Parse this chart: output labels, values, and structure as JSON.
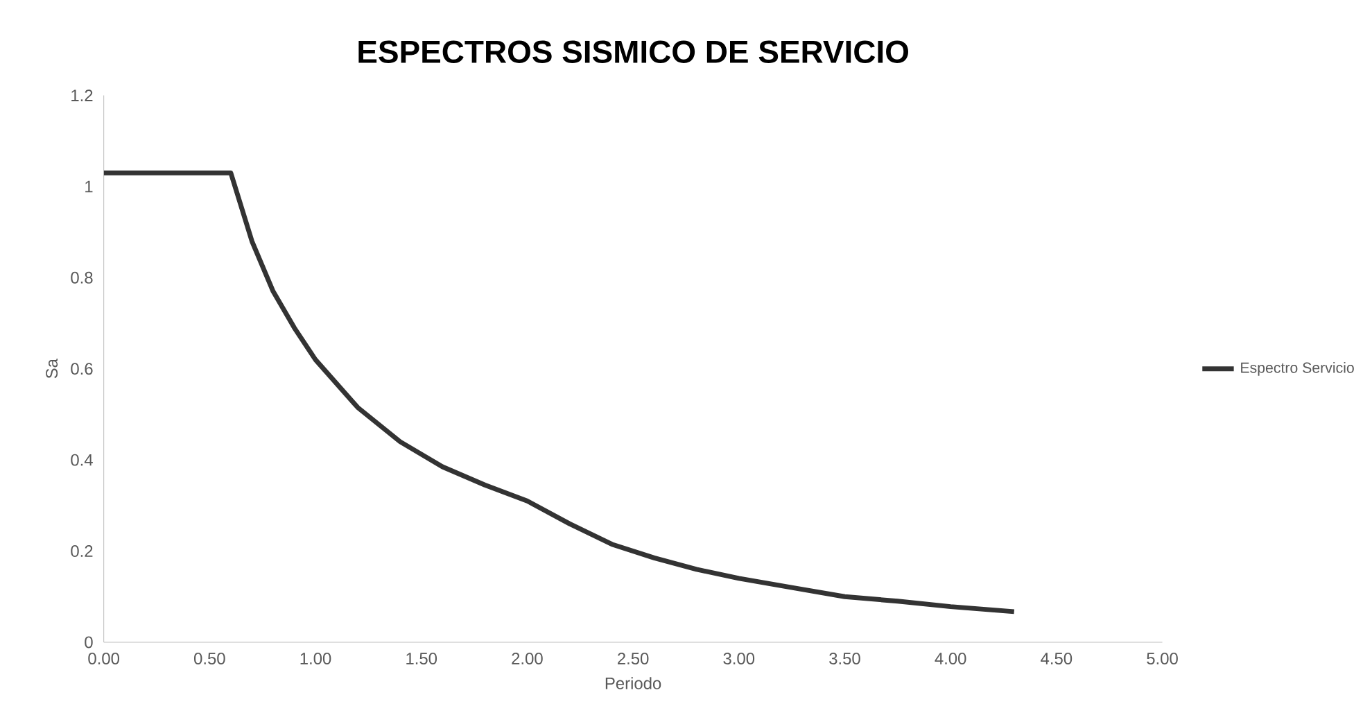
{
  "chart_data": {
    "type": "line",
    "title": "ESPECTROS SISMICO DE SERVICIO",
    "xlabel": "Periodo",
    "ylabel": "Sa",
    "x": [
      0,
      0.6,
      0.7,
      0.8,
      0.9,
      1.0,
      1.2,
      1.4,
      1.6,
      1.8,
      2.0,
      2.2,
      2.4,
      2.6,
      2.8,
      3.0,
      3.25,
      3.5,
      3.75,
      4.0,
      4.3
    ],
    "series": [
      {
        "name": "Espectro Servicio",
        "color": "#333333",
        "values": [
          1.03,
          1.03,
          0.88,
          0.77,
          0.69,
          0.62,
          0.515,
          0.44,
          0.385,
          0.345,
          0.31,
          0.26,
          0.215,
          0.185,
          0.16,
          0.14,
          0.12,
          0.1,
          0.09,
          0.078,
          0.067
        ]
      }
    ],
    "xlim": [
      0,
      5
    ],
    "ylim": [
      0,
      1.2
    ],
    "xticks": [
      {
        "value": 0,
        "label": "0.00"
      },
      {
        "value": 0.5,
        "label": "0.50"
      },
      {
        "value": 1,
        "label": "1.00"
      },
      {
        "value": 1.5,
        "label": "1.50"
      },
      {
        "value": 2,
        "label": "2.00"
      },
      {
        "value": 2.5,
        "label": "2.50"
      },
      {
        "value": 3,
        "label": "3.00"
      },
      {
        "value": 3.5,
        "label": "3.50"
      },
      {
        "value": 4,
        "label": "4.00"
      },
      {
        "value": 4.5,
        "label": "4.50"
      },
      {
        "value": 5,
        "label": "5.00"
      }
    ],
    "yticks": [
      0,
      0.2,
      0.4,
      0.6,
      0.8,
      1,
      1.2
    ],
    "grid": false,
    "legend": "right",
    "marker": "none",
    "line_style": "solid"
  }
}
